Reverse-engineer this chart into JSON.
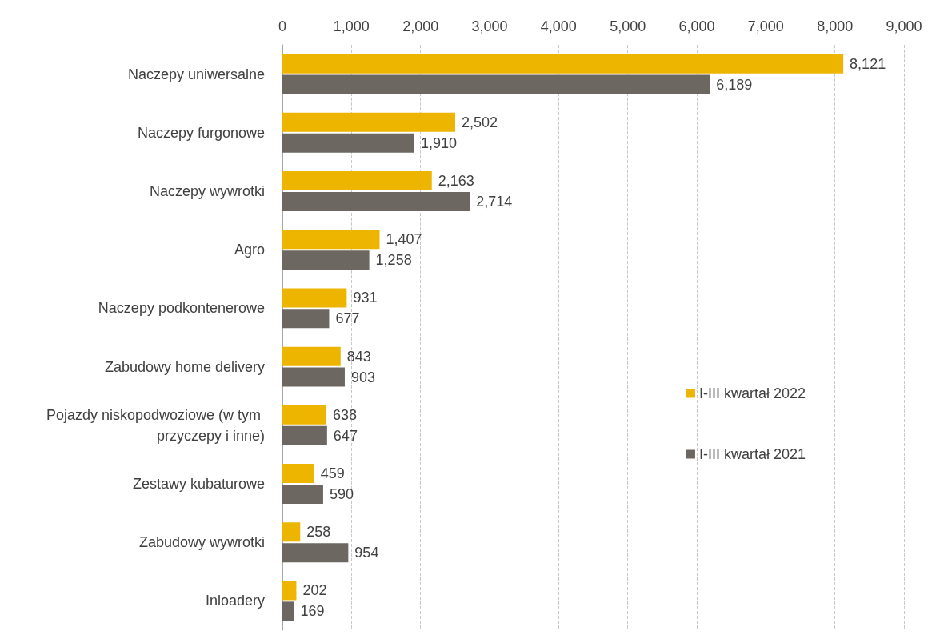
{
  "chart_data": {
    "type": "bar",
    "orientation": "horizontal",
    "categories": [
      "Naczepy uniwersalne",
      "Naczepy furgonowe",
      "Naczepy wywrotki",
      "Agro",
      "Naczepy podkontenerowe",
      "Zabudowy home delivery",
      "Pojazdy niskopodwoziowe (w tym przyczepy i inne)",
      "Zestawy kubaturowe",
      "Zabudowy wywrotki",
      "Inloadery"
    ],
    "series": [
      {
        "name": "I-III kwartał 2022",
        "color": "#edb500",
        "values": [
          8121,
          2502,
          2163,
          1407,
          931,
          843,
          638,
          459,
          258,
          202
        ],
        "value_labels": [
          "8,121",
          "2,502",
          "2,163",
          "1,407",
          "931",
          "843",
          "638",
          "459",
          "258",
          "202"
        ]
      },
      {
        "name": "I-III kwartał 2021",
        "color": "#6d6762",
        "values": [
          6189,
          1910,
          2714,
          1258,
          677,
          903,
          647,
          590,
          954,
          169
        ],
        "value_labels": [
          "6,189",
          "1,910",
          "2,714",
          "1,258",
          "677",
          "903",
          "647",
          "590",
          "954",
          "169"
        ]
      }
    ],
    "xlim": [
      0,
      9000
    ],
    "xticks": [
      0,
      {
        "value": 1000,
        "label": "1,000"
      },
      {
        "value": 2000,
        "label": "2,000"
      },
      {
        "value": 3000,
        "label": "3,000"
      },
      {
        "value": 4000,
        "label": "4,000"
      },
      {
        "value": 5000,
        "label": "5,000"
      },
      {
        "value": 6000,
        "label": "6,000"
      },
      {
        "value": 7000,
        "label": "7,000"
      },
      {
        "value": 8000,
        "label": "8,000"
      },
      {
        "value": 9000,
        "label": "9,000"
      }
    ],
    "grid": "x",
    "legend": "right"
  }
}
